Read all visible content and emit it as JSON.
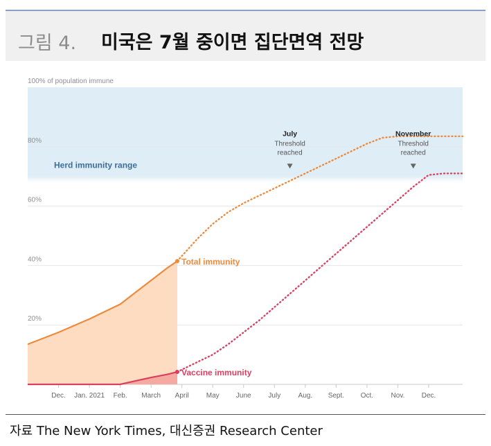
{
  "header": {
    "fig_label": "그림 4.",
    "fig_title": "미국은 7월 중이면 집단면역 전망"
  },
  "source": "자료 The New York Times, 대신증권 Research Center",
  "colors": {
    "band": "#deedf6",
    "total": "#ee8a3c",
    "total_fill": "#fddcc2",
    "vaccine": "#d9405f",
    "vaccine_fill": "#f6a9a1",
    "axis": "#c9c9c9",
    "band_text": "#3d6e9a"
  },
  "chart_data": {
    "type": "line",
    "ylabel": "100% of population immune",
    "ylim": [
      0,
      100
    ],
    "y_ticks": [
      {
        "v": 20,
        "label": "20%"
      },
      {
        "v": 40,
        "label": "40%"
      },
      {
        "v": 60,
        "label": "60%"
      },
      {
        "v": 80,
        "label": "80%"
      }
    ],
    "x_tick_labels": [
      "Dec.",
      "Jan. 2021",
      "Feb.",
      "March",
      "April",
      "May",
      "June",
      "July",
      "Aug.",
      "Sept.",
      "Oct.",
      "Nov.",
      "Dec."
    ],
    "x_tick_months": [
      1,
      2,
      3,
      4,
      5,
      6,
      7,
      8,
      9,
      10,
      11,
      12,
      13
    ],
    "xlim": [
      0,
      14.1
    ],
    "herd_band": {
      "label": "Herd immunity range",
      "from": 70,
      "to": 100
    },
    "series": [
      {
        "name": "Total immunity",
        "color": "#ee8a3c",
        "solid": [
          [
            0,
            13.5
          ],
          [
            1,
            17.5
          ],
          [
            2,
            22
          ],
          [
            3,
            27
          ],
          [
            3.5,
            31
          ],
          [
            4.0,
            35
          ],
          [
            4.5,
            39
          ],
          [
            4.85,
            41.5
          ]
        ],
        "dotted": [
          [
            4.85,
            41.5
          ],
          [
            5.5,
            49
          ],
          [
            6,
            54
          ],
          [
            6.5,
            58
          ],
          [
            7,
            61
          ],
          [
            7.5,
            63.5
          ],
          [
            8,
            66
          ],
          [
            8.5,
            68.5
          ],
          [
            9,
            71
          ],
          [
            9.5,
            73.5
          ],
          [
            10,
            76
          ],
          [
            10.5,
            78.5
          ],
          [
            11,
            81
          ],
          [
            11.5,
            83
          ],
          [
            12,
            83.5
          ],
          [
            12.5,
            83.5
          ],
          [
            13,
            83.5
          ],
          [
            13.5,
            83.5
          ],
          [
            14.1,
            83.5
          ]
        ]
      },
      {
        "name": "Vaccine immunity",
        "color": "#d9405f",
        "solid": [
          [
            0,
            0
          ],
          [
            2,
            0
          ],
          [
            2.5,
            0
          ],
          [
            3,
            0
          ],
          [
            3.5,
            1.2
          ],
          [
            4.0,
            2.3
          ],
          [
            4.5,
            3.3
          ],
          [
            4.85,
            4.2
          ]
        ],
        "dotted": [
          [
            4.85,
            4.2
          ],
          [
            5.5,
            7.5
          ],
          [
            6,
            10
          ],
          [
            6.5,
            13.5
          ],
          [
            7,
            17.5
          ],
          [
            7.5,
            21.5
          ],
          [
            8,
            26
          ],
          [
            8.5,
            30.5
          ],
          [
            9,
            35
          ],
          [
            9.5,
            39.5
          ],
          [
            10,
            44
          ],
          [
            10.5,
            48.5
          ],
          [
            11,
            53
          ],
          [
            11.5,
            57.5
          ],
          [
            12,
            62
          ],
          [
            12.5,
            66.5
          ],
          [
            13,
            70.5
          ],
          [
            13.5,
            71
          ],
          [
            14.1,
            71
          ]
        ]
      }
    ],
    "annotations": [
      {
        "title": "July",
        "lines": [
          "Threshold",
          "reached"
        ],
        "x": 8.5,
        "y": 71
      },
      {
        "title": "November",
        "lines": [
          "Threshold",
          "reached"
        ],
        "x": 12.5,
        "y": 71
      }
    ]
  }
}
